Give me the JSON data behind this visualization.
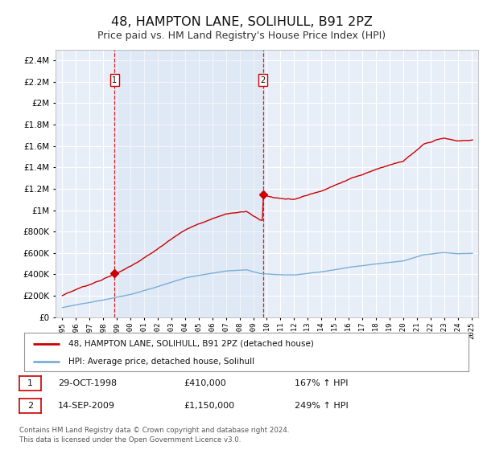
{
  "title": "48, HAMPTON LANE, SOLIHULL, B91 2PZ",
  "subtitle": "Price paid vs. HM Land Registry's House Price Index (HPI)",
  "title_fontsize": 11.5,
  "subtitle_fontsize": 9,
  "bg_color": "#ffffff",
  "plot_bg_color": "#e8eef8",
  "grid_color": "#ffffff",
  "red_line_color": "#cc0000",
  "blue_line_color": "#7aaed6",
  "sale1_year": 1998.83,
  "sale1_price": 410000,
  "sale2_year": 2009.71,
  "sale2_price": 1150000,
  "ylim_min": 0,
  "ylim_max": 2500000,
  "xlim_min": 1994.5,
  "xlim_max": 2025.5,
  "legend_label_red": "48, HAMPTON LANE, SOLIHULL, B91 2PZ (detached house)",
  "legend_label_blue": "HPI: Average price, detached house, Solihull",
  "table_row1": [
    "1",
    "29-OCT-1998",
    "£410,000",
    "167% ↑ HPI"
  ],
  "table_row2": [
    "2",
    "14-SEP-2009",
    "£1,150,000",
    "249% ↑ HPI"
  ],
  "footer1": "Contains HM Land Registry data © Crown copyright and database right 2024.",
  "footer2": "This data is licensed under the Open Government Licence v3.0."
}
